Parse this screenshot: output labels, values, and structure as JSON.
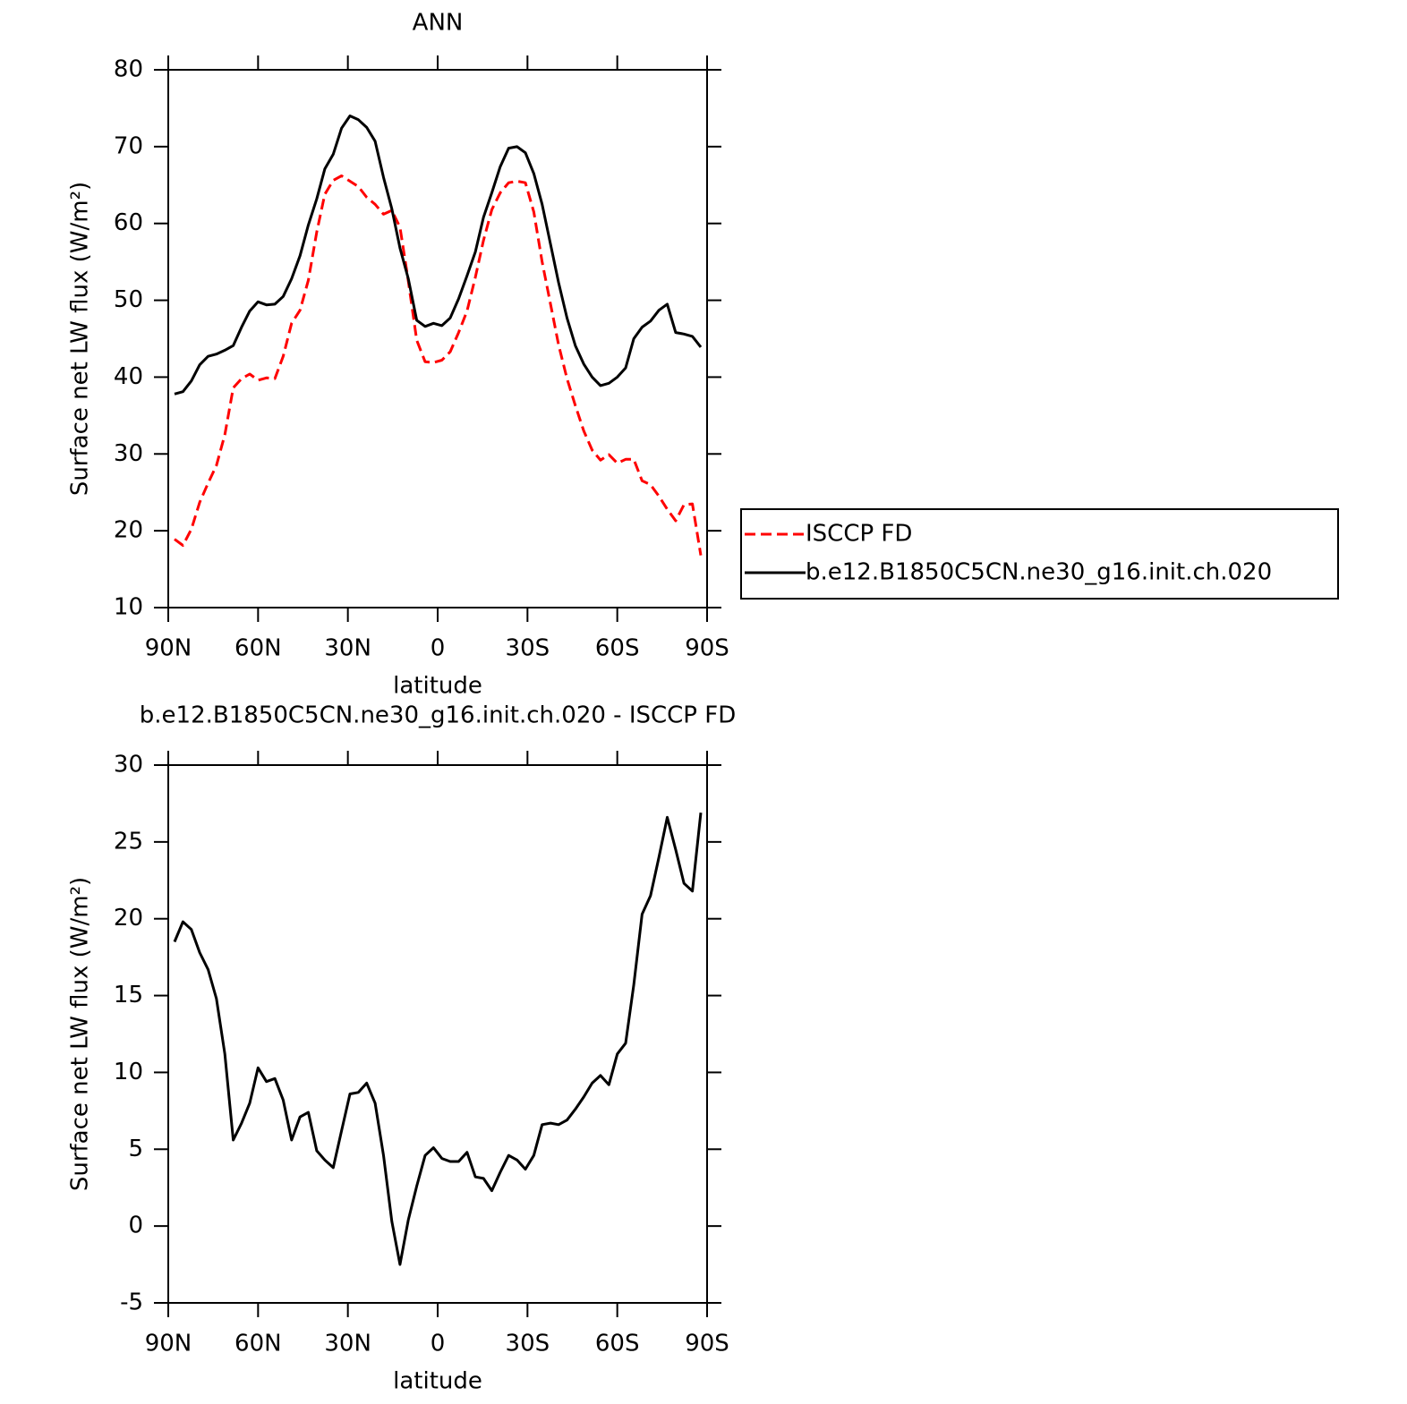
{
  "chart_data": [
    {
      "type": "line",
      "title": "ANN",
      "xlabel": "latitude",
      "ylabel": "Surface net LW flux (W/m²)",
      "x": [
        87.9,
        85.1,
        82.3,
        79.5,
        76.7,
        73.9,
        71.1,
        68.3,
        65.5,
        62.8,
        60.0,
        57.2,
        54.4,
        51.6,
        48.8,
        46.0,
        43.2,
        40.4,
        37.7,
        34.9,
        32.1,
        29.3,
        26.5,
        23.7,
        20.9,
        18.1,
        15.3,
        12.6,
        9.8,
        7.0,
        4.2,
        1.4,
        -1.4,
        -4.2,
        -7.0,
        -9.8,
        -12.6,
        -15.3,
        -18.1,
        -20.9,
        -23.7,
        -26.5,
        -29.3,
        -32.1,
        -34.9,
        -37.7,
        -40.4,
        -43.2,
        -46.0,
        -48.8,
        -51.6,
        -54.4,
        -57.2,
        -60.0,
        -62.8,
        -65.5,
        -68.3,
        -71.1,
        -73.9,
        -76.7,
        -79.5,
        -82.3,
        -85.1,
        -87.9
      ],
      "series": [
        {
          "name": "ISCCP FD",
          "color": "#ff0000",
          "linestyle": "dashed",
          "values": [
            18.9,
            18.1,
            20.2,
            23.7,
            26.2,
            28.5,
            32.5,
            38.6,
            39.8,
            40.4,
            39.6,
            39.9,
            39.8,
            42.7,
            47.0,
            48.7,
            52.6,
            58.9,
            63.8,
            65.6,
            66.2,
            65.5,
            64.8,
            63.4,
            62.5,
            61.2,
            61.7,
            59.5,
            52.5,
            44.8,
            42.0,
            41.9,
            42.2,
            43.3,
            45.8,
            48.6,
            53.0,
            57.8,
            61.8,
            64.0,
            65.3,
            65.5,
            65.3,
            61.5,
            55.0,
            49.5,
            44.2,
            39.8,
            36.3,
            33.0,
            30.5,
            29.2,
            29.9,
            28.8,
            29.3,
            29.3,
            26.5,
            26.0,
            24.5,
            22.8,
            21.3,
            23.4,
            23.5,
            16.8
          ]
        },
        {
          "name": "b.e12.B1850C5CN.ne30_g16.init.ch.020",
          "color": "#000000",
          "linestyle": "solid",
          "values": [
            37.8,
            38.1,
            39.5,
            41.6,
            42.7,
            43.0,
            43.5,
            44.1,
            46.5,
            48.6,
            49.8,
            49.4,
            49.5,
            50.5,
            52.8,
            55.8,
            59.8,
            63.2,
            67.1,
            69.0,
            72.4,
            74.0,
            73.5,
            72.5,
            70.7,
            66.0,
            61.9,
            56.8,
            52.8,
            47.4,
            46.6,
            47.0,
            46.7,
            47.7,
            50.2,
            53.2,
            56.3,
            60.8,
            64.0,
            67.4,
            69.8,
            70.0,
            69.2,
            66.5,
            62.5,
            57.3,
            52.3,
            47.7,
            44.1,
            41.7,
            40.0,
            38.9,
            39.2,
            40.0,
            41.2,
            45.0,
            46.5,
            47.3,
            48.7,
            49.5,
            45.8,
            45.6,
            45.3,
            43.9
          ]
        }
      ],
      "xlim": [
        90,
        -90
      ],
      "xticks": [
        {
          "value": 90,
          "label": "90N"
        },
        {
          "value": 60,
          "label": "60N"
        },
        {
          "value": 30,
          "label": "30N"
        },
        0,
        {
          "value": -30,
          "label": "30S"
        },
        {
          "value": -60,
          "label": "60S"
        },
        {
          "value": -90,
          "label": "90S"
        }
      ],
      "ylim": [
        10,
        80
      ],
      "yticks": [
        10,
        20,
        30,
        40,
        50,
        60,
        70,
        80
      ],
      "legend": "right"
    },
    {
      "type": "line",
      "title": "b.e12.B1850C5CN.ne30_g16.init.ch.020 - ISCCP FD",
      "xlabel": "latitude",
      "ylabel": "Surface net LW flux (W/m²)",
      "x": [
        87.9,
        85.1,
        82.3,
        79.5,
        76.7,
        73.9,
        71.1,
        68.3,
        65.5,
        62.8,
        60.0,
        57.2,
        54.4,
        51.6,
        48.8,
        46.0,
        43.2,
        40.4,
        37.7,
        34.9,
        32.1,
        29.3,
        26.5,
        23.7,
        20.9,
        18.1,
        15.3,
        12.6,
        9.8,
        7.0,
        4.2,
        1.4,
        -1.4,
        -4.2,
        -7.0,
        -9.8,
        -12.6,
        -15.3,
        -18.1,
        -20.9,
        -23.7,
        -26.5,
        -29.3,
        -32.1,
        -34.9,
        -37.7,
        -40.4,
        -43.2,
        -46.0,
        -48.8,
        -51.6,
        -54.4,
        -57.2,
        -60.0,
        -62.8,
        -65.5,
        -68.3,
        -71.1,
        -73.9,
        -76.7,
        -79.5,
        -82.3,
        -85.1,
        -87.9
      ],
      "color": "#000000",
      "values": [
        18.5,
        19.8,
        19.3,
        17.8,
        16.7,
        14.8,
        11.2,
        5.6,
        6.7,
        8.0,
        10.3,
        9.4,
        9.6,
        8.2,
        5.6,
        7.1,
        7.4,
        4.9,
        4.3,
        3.8,
        6.2,
        8.6,
        8.7,
        9.3,
        8.0,
        4.6,
        0.3,
        -2.5,
        0.4,
        2.6,
        4.6,
        5.1,
        4.4,
        4.2,
        4.2,
        4.8,
        3.2,
        3.1,
        2.3,
        3.5,
        4.6,
        4.3,
        3.7,
        4.6,
        6.6,
        6.7,
        6.6,
        6.9,
        7.6,
        8.4,
        9.3,
        9.8,
        9.2,
        11.2,
        11.9,
        15.7,
        20.3,
        21.5,
        24.0,
        26.6,
        24.5,
        22.3,
        21.8,
        26.9
      ],
      "xlim": [
        90,
        -90
      ],
      "xticks": [
        {
          "value": 90,
          "label": "90N"
        },
        {
          "value": 60,
          "label": "60N"
        },
        {
          "value": 30,
          "label": "30N"
        },
        0,
        {
          "value": -30,
          "label": "30S"
        },
        {
          "value": -60,
          "label": "60S"
        },
        {
          "value": -90,
          "label": "90S"
        }
      ],
      "ylim": [
        -5,
        30
      ],
      "yticks": [
        -5,
        0,
        5,
        10,
        15,
        20,
        25,
        30
      ]
    }
  ]
}
